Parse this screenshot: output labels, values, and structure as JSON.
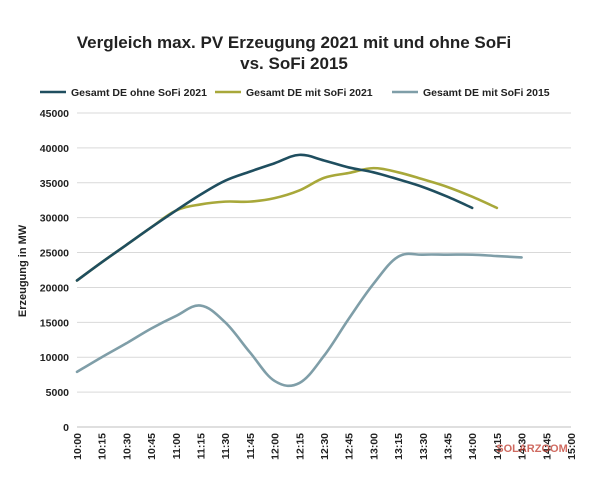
{
  "chart_data": {
    "type": "line",
    "title_line1": "Vergleich max. PV Erzeugung 2021 mit und ohne SoFi",
    "title_line2": "vs. SoFi 2015",
    "xlabel": "",
    "ylabel": "Erzeugung in MW",
    "ylim": [
      0,
      45000
    ],
    "yticks": [
      "0",
      "5000",
      "10000",
      "15000",
      "20000",
      "25000",
      "30000",
      "35000",
      "40000",
      "45000"
    ],
    "ytick_values": [
      0,
      5000,
      10000,
      15000,
      20000,
      25000,
      30000,
      35000,
      40000,
      45000
    ],
    "categories": [
      "10:00",
      "10:15",
      "10:30",
      "10:45",
      "11:00",
      "11:15",
      "11:30",
      "11:45",
      "12:00",
      "12:15",
      "12:30",
      "12:45",
      "13:00",
      "13:15",
      "13:30",
      "13:45",
      "14:00",
      "14:15",
      "14:30",
      "14:45",
      "15:00"
    ],
    "grid": true,
    "legend_position": "top",
    "series": [
      {
        "name": "Gesamt DE ohne SoFi 2021",
        "color": "#1f4e5f",
        "x": [
          0,
          1,
          2,
          3,
          4,
          5,
          6,
          7,
          8,
          9,
          10,
          11,
          12,
          13,
          14,
          15,
          16,
          17,
          18,
          19,
          20
        ],
        "values": [
          21000,
          23600,
          26100,
          28600,
          31000,
          33300,
          35300,
          36600,
          37800,
          39000,
          38200,
          37200,
          36500,
          35500,
          34400,
          33000,
          31400,
          null,
          null,
          null,
          null
        ]
      },
      {
        "name": "Gesamt DE mit SoFi 2021",
        "color": "#a8a83a",
        "x": [
          0,
          1,
          2,
          3,
          4,
          5,
          6,
          7,
          8,
          9,
          10,
          11,
          12,
          13,
          14,
          15,
          16,
          17,
          18,
          19,
          20
        ],
        "values": [
          21000,
          23600,
          26100,
          28600,
          31000,
          31900,
          32300,
          32300,
          32800,
          33900,
          35700,
          36400,
          37100,
          36500,
          35500,
          34400,
          33000,
          31400,
          null,
          null,
          null
        ]
      },
      {
        "name": "Gesamt DE mit SoFi 2015",
        "color": "#7f9ea8",
        "x": [
          0,
          1,
          2,
          3,
          4,
          5,
          6,
          7,
          8,
          9,
          10,
          11,
          12,
          13,
          14,
          15,
          16,
          17,
          18,
          19,
          20
        ],
        "values": [
          7900,
          10000,
          12000,
          14100,
          15900,
          17400,
          15000,
          10700,
          6600,
          6300,
          10200,
          15500,
          20500,
          24400,
          24700,
          24700,
          24700,
          24500,
          24300,
          null,
          null
        ]
      }
    ]
  },
  "watermark": "SOLARZOOM"
}
